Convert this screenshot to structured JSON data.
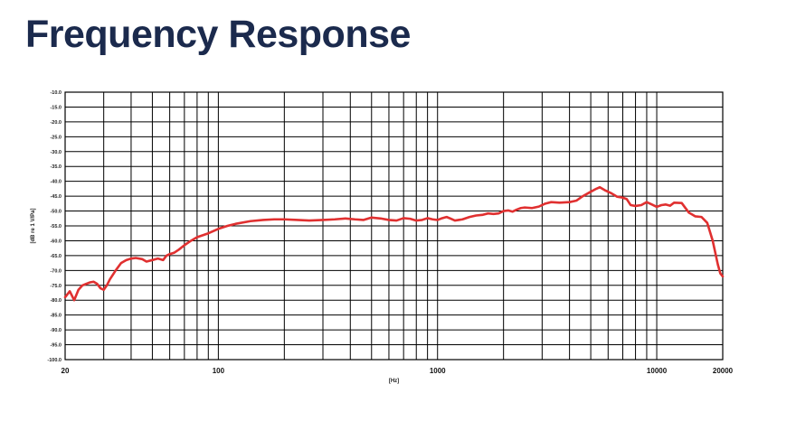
{
  "slide": {
    "title": "Frequency Response"
  },
  "chart_data": {
    "type": "line",
    "xscale": "log",
    "xlim": [
      20,
      20000
    ],
    "ylim": [
      -100,
      -10
    ],
    "xlabel": "[Hz]",
    "ylabel": "[dB re 1 V/Pa]",
    "grid": true,
    "x_ticks": [
      {
        "value": 20,
        "label": "20"
      },
      {
        "value": 100,
        "label": "100"
      },
      {
        "value": 1000,
        "label": "1000"
      },
      {
        "value": 10000,
        "label": "10000"
      },
      {
        "value": 20000,
        "label": "20000"
      }
    ],
    "y_ticks": [
      {
        "value": -10,
        "label": "-10.0"
      },
      {
        "value": -15,
        "label": "-15.0"
      },
      {
        "value": -20,
        "label": "-20.0"
      },
      {
        "value": -25,
        "label": "-25.0"
      },
      {
        "value": -30,
        "label": "-30.0"
      },
      {
        "value": -35,
        "label": "-35.0"
      },
      {
        "value": -40,
        "label": "-40.0"
      },
      {
        "value": -45,
        "label": "-45.0"
      },
      {
        "value": -50,
        "label": "-50.0"
      },
      {
        "value": -55,
        "label": "-55.0"
      },
      {
        "value": -60,
        "label": "-60.0"
      },
      {
        "value": -65,
        "label": "-65.0"
      },
      {
        "value": -70,
        "label": "-70.0"
      },
      {
        "value": -75,
        "label": "-75.0"
      },
      {
        "value": -80,
        "label": "-80.0"
      },
      {
        "value": -85,
        "label": "-85.0"
      },
      {
        "value": -90,
        "label": "-90.0"
      },
      {
        "value": -95,
        "label": "-95.0"
      },
      {
        "value": -100,
        "label": "-100.0"
      }
    ],
    "series": [
      {
        "color": "#e03030",
        "points": [
          [
            20,
            -79
          ],
          [
            21,
            -77
          ],
          [
            22,
            -80
          ],
          [
            23,
            -76.5
          ],
          [
            24,
            -75
          ],
          [
            25,
            -74.5
          ],
          [
            26,
            -74
          ],
          [
            27,
            -73.8
          ],
          [
            28,
            -74.5
          ],
          [
            29,
            -76
          ],
          [
            30,
            -76.5
          ],
          [
            31,
            -75
          ],
          [
            32,
            -73
          ],
          [
            34,
            -70
          ],
          [
            36,
            -67.5
          ],
          [
            38,
            -66.5
          ],
          [
            40,
            -66
          ],
          [
            42,
            -65.8
          ],
          [
            45,
            -66.2
          ],
          [
            47,
            -67
          ],
          [
            50,
            -66.5
          ],
          [
            53,
            -66
          ],
          [
            56,
            -66.5
          ],
          [
            58,
            -65
          ],
          [
            60,
            -64.5
          ],
          [
            63,
            -64
          ],
          [
            66,
            -63
          ],
          [
            70,
            -61.5
          ],
          [
            75,
            -60
          ],
          [
            80,
            -58.8
          ],
          [
            90,
            -57.5
          ],
          [
            100,
            -56
          ],
          [
            110,
            -55
          ],
          [
            120,
            -54.3
          ],
          [
            140,
            -53.4
          ],
          [
            160,
            -53
          ],
          [
            180,
            -52.8
          ],
          [
            200,
            -52.8
          ],
          [
            230,
            -53
          ],
          [
            260,
            -53.2
          ],
          [
            300,
            -53
          ],
          [
            340,
            -52.8
          ],
          [
            380,
            -52.5
          ],
          [
            420,
            -52.8
          ],
          [
            460,
            -53
          ],
          [
            500,
            -52.2
          ],
          [
            550,
            -52.5
          ],
          [
            600,
            -53
          ],
          [
            650,
            -53.2
          ],
          [
            700,
            -52.4
          ],
          [
            750,
            -52.6
          ],
          [
            800,
            -53.2
          ],
          [
            850,
            -53
          ],
          [
            900,
            -52.4
          ],
          [
            950,
            -52.8
          ],
          [
            1000,
            -53
          ],
          [
            1050,
            -52.4
          ],
          [
            1100,
            -52
          ],
          [
            1150,
            -52.6
          ],
          [
            1200,
            -53.2
          ],
          [
            1300,
            -52.8
          ],
          [
            1400,
            -52
          ],
          [
            1500,
            -51.5
          ],
          [
            1600,
            -51.3
          ],
          [
            1700,
            -50.8
          ],
          [
            1800,
            -51
          ],
          [
            1900,
            -50.8
          ],
          [
            2000,
            -50
          ],
          [
            2100,
            -49.8
          ],
          [
            2200,
            -50.2
          ],
          [
            2300,
            -49.5
          ],
          [
            2400,
            -49
          ],
          [
            2500,
            -48.8
          ],
          [
            2700,
            -49
          ],
          [
            2900,
            -48.5
          ],
          [
            3100,
            -47.5
          ],
          [
            3300,
            -47
          ],
          [
            3600,
            -47.2
          ],
          [
            4000,
            -47
          ],
          [
            4300,
            -46.5
          ],
          [
            4600,
            -45
          ],
          [
            5000,
            -43.5
          ],
          [
            5300,
            -42.5
          ],
          [
            5500,
            -42
          ],
          [
            5800,
            -43
          ],
          [
            6200,
            -44
          ],
          [
            6600,
            -45.2
          ],
          [
            7000,
            -45.5
          ],
          [
            7300,
            -46
          ],
          [
            7600,
            -48
          ],
          [
            8000,
            -48.3
          ],
          [
            8500,
            -48
          ],
          [
            9000,
            -47
          ],
          [
            9500,
            -47.8
          ],
          [
            10000,
            -48.6
          ],
          [
            10500,
            -48
          ],
          [
            11000,
            -47.8
          ],
          [
            11500,
            -48.2
          ],
          [
            12000,
            -47.2
          ],
          [
            13000,
            -47.3
          ],
          [
            14000,
            -50.5
          ],
          [
            15000,
            -51.8
          ],
          [
            16000,
            -52
          ],
          [
            17000,
            -54
          ],
          [
            18000,
            -60
          ],
          [
            19000,
            -68
          ],
          [
            19500,
            -71
          ],
          [
            20000,
            -72
          ]
        ]
      }
    ]
  }
}
